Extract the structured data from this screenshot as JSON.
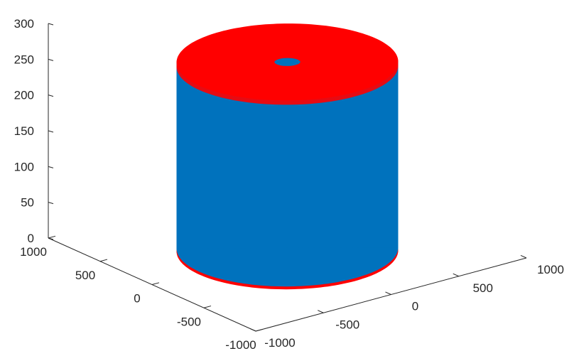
{
  "chart_data": {
    "type": "3d-surface",
    "title": "",
    "xlabel": "",
    "ylabel": "",
    "zlabel": "",
    "grid": false,
    "legend": "none",
    "x_axis": {
      "range": [
        -1000,
        1000
      ],
      "ticks": [
        -1000,
        -500,
        0,
        500,
        1000
      ],
      "tick_labels": [
        "-1000",
        "-500",
        "0",
        "500",
        "1000"
      ]
    },
    "y_axis": {
      "range": [
        -1000,
        1000
      ],
      "ticks": [
        -1000,
        -500,
        0,
        500,
        1000
      ],
      "tick_labels": [
        "-1000",
        "-500",
        "0",
        "500",
        "1000"
      ]
    },
    "z_axis": {
      "range": [
        0,
        300
      ],
      "ticks": [
        0,
        50,
        100,
        150,
        200,
        250,
        300
      ],
      "tick_labels": [
        "0",
        "50",
        "100",
        "150",
        "200",
        "250",
        "300"
      ]
    },
    "series": [
      {
        "shape": "cylinder",
        "radius": 650,
        "z_range": [
          0,
          260
        ],
        "inner_hole_radius": 80,
        "side_color": "#0072bd",
        "cap_color": "#ff0000"
      }
    ]
  }
}
